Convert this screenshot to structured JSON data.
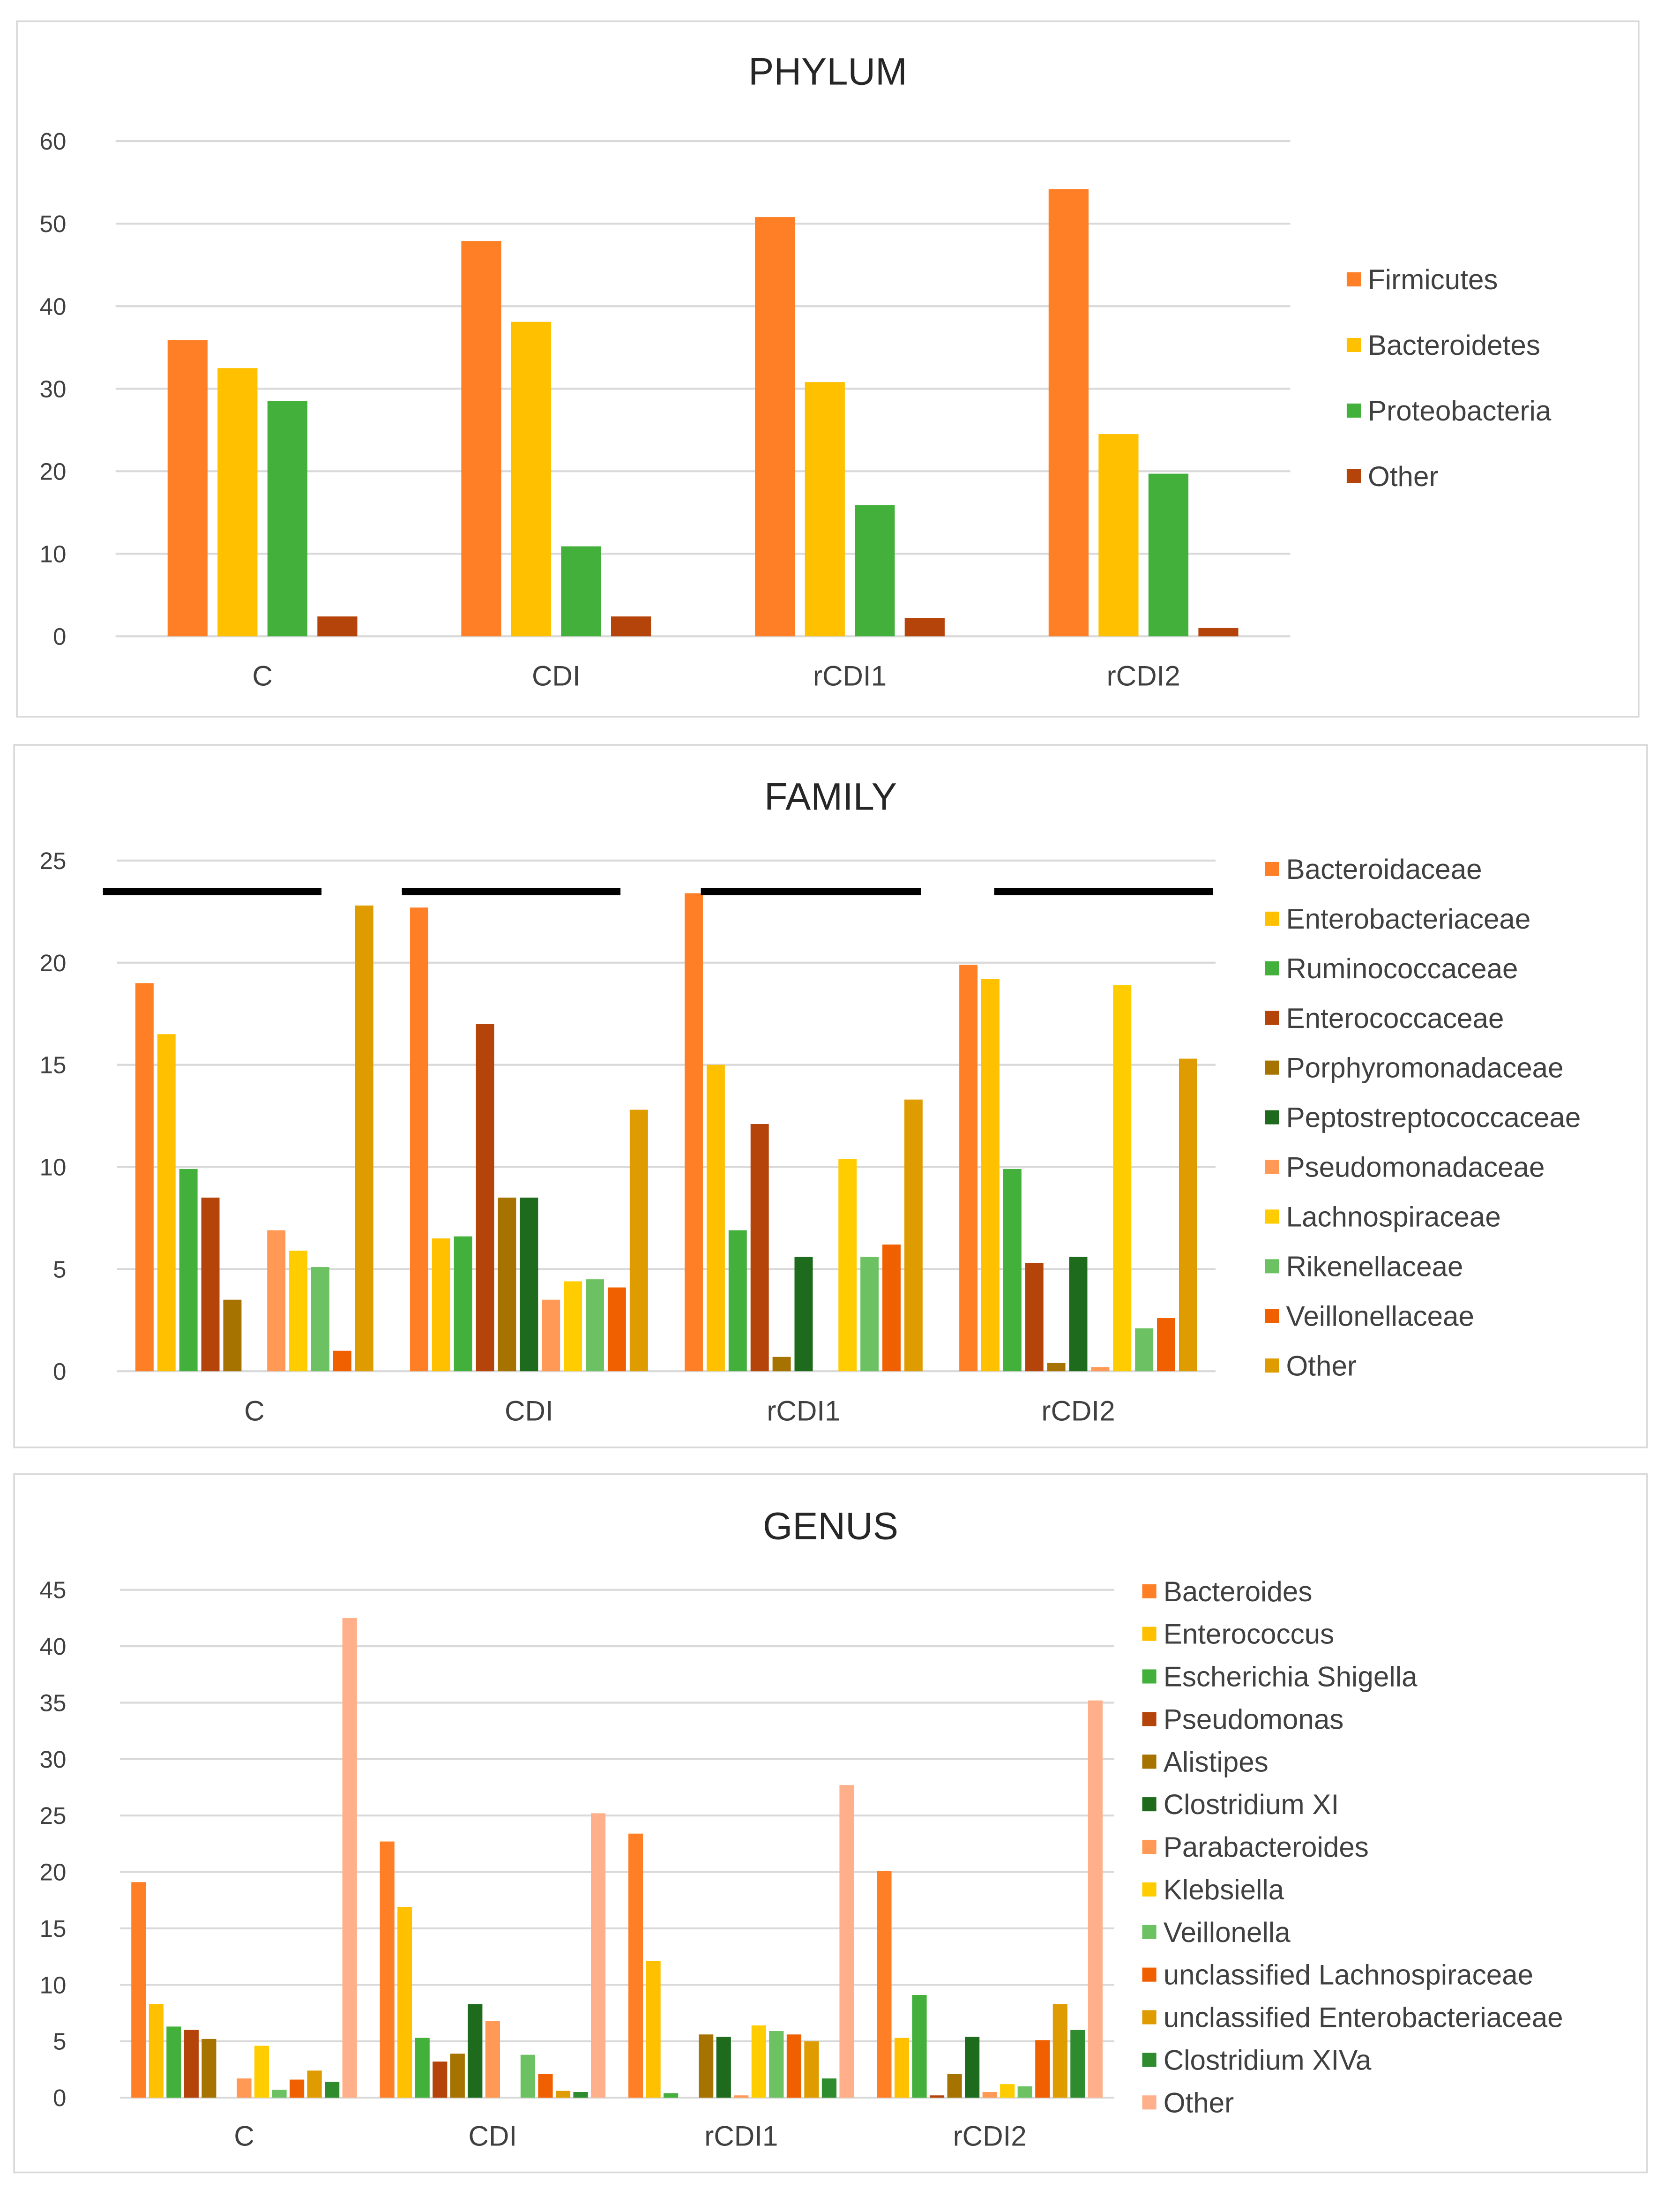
{
  "chart_data": [
    {
      "type": "bar",
      "title": "PHYLUM",
      "xlabel": "",
      "ylabel": "",
      "ylim": [
        0,
        60
      ],
      "yticks": [
        0,
        10,
        20,
        30,
        40,
        50,
        60
      ],
      "grid": true,
      "legend_position": "right",
      "categories": [
        "C",
        "CDI",
        "rCDI1",
        "rCDI2"
      ],
      "series": [
        {
          "name": "Firmicutes",
          "color": "#FF7F27",
          "values": [
            35.9,
            47.9,
            50.8,
            54.2
          ]
        },
        {
          "name": "Bacteroidetes",
          "color": "#FFC000",
          "values": [
            32.5,
            38.1,
            30.8,
            24.5
          ]
        },
        {
          "name": "Proteobacteria",
          "color": "#43B03C",
          "values": [
            28.5,
            10.9,
            15.9,
            19.7
          ]
        },
        {
          "name": "Other",
          "color": "#B5440A",
          "values": [
            2.4,
            2.4,
            2.2,
            1.0
          ]
        }
      ]
    },
    {
      "type": "bar",
      "title": "FAMILY",
      "xlabel": "",
      "ylabel": "",
      "ylim": [
        0,
        25
      ],
      "yticks": [
        0,
        5,
        10,
        15,
        20,
        25
      ],
      "grid": true,
      "legend_position": "right",
      "significance_bars": true,
      "categories": [
        "C",
        "CDI",
        "rCDI1",
        "rCDI2"
      ],
      "series": [
        {
          "name": "Bacteroidaceae",
          "color": "#FF7F27",
          "values": [
            19.0,
            22.7,
            23.4,
            19.9
          ]
        },
        {
          "name": "Enterobacteriaceae",
          "color": "#FFC000",
          "values": [
            16.5,
            6.5,
            15.0,
            19.2
          ]
        },
        {
          "name": "Ruminococcaceae",
          "color": "#43B03C",
          "values": [
            9.9,
            6.6,
            6.9,
            9.9
          ]
        },
        {
          "name": "Enterococcaceae",
          "color": "#B5440A",
          "values": [
            8.5,
            17.0,
            12.1,
            5.3
          ]
        },
        {
          "name": "Porphyromonadaceae",
          "color": "#A67200",
          "values": [
            3.5,
            8.5,
            0.7,
            0.4
          ]
        },
        {
          "name": "Peptostreptococcaceae",
          "color": "#1E6B1E",
          "values": [
            0,
            8.5,
            5.6,
            5.6
          ]
        },
        {
          "name": "Pseudomonadaceae",
          "color": "#FF9955",
          "values": [
            6.9,
            3.5,
            0,
            0.2
          ]
        },
        {
          "name": "Lachnospiraceae",
          "color": "#FFCC00",
          "values": [
            5.9,
            4.4,
            10.4,
            18.9
          ]
        },
        {
          "name": "Rikenellaceae",
          "color": "#6CC262",
          "values": [
            5.1,
            4.5,
            5.6,
            2.1
          ]
        },
        {
          "name": "Veillonellaceae",
          "color": "#F06000",
          "values": [
            1.0,
            4.1,
            6.2,
            2.6
          ]
        },
        {
          "name": "Other",
          "color": "#DE9C00",
          "values": [
            22.8,
            12.8,
            13.3,
            15.3
          ]
        }
      ]
    },
    {
      "type": "bar",
      "title": "GENUS",
      "xlabel": "",
      "ylabel": "",
      "ylim": [
        0,
        45
      ],
      "yticks": [
        0,
        5,
        10,
        15,
        20,
        25,
        30,
        35,
        40,
        45
      ],
      "grid": true,
      "legend_position": "right",
      "categories": [
        "C",
        "CDI",
        "rCDI1",
        "rCDI2"
      ],
      "series": [
        {
          "name": "Bacteroides",
          "color": "#FF7F27",
          "values": [
            19.1,
            22.7,
            23.4,
            20.1
          ]
        },
        {
          "name": "Enterococcus",
          "color": "#FFC000",
          "values": [
            8.3,
            16.9,
            12.1,
            5.3
          ]
        },
        {
          "name": "Escherichia Shigella",
          "color": "#43B03C",
          "values": [
            6.3,
            5.3,
            0.4,
            9.1
          ]
        },
        {
          "name": "Pseudomonas",
          "color": "#B5440A",
          "values": [
            6.0,
            3.2,
            0,
            0.2
          ]
        },
        {
          "name": "Alistipes",
          "color": "#A67200",
          "values": [
            5.2,
            3.9,
            5.6,
            2.1
          ]
        },
        {
          "name": "Clostridium XI",
          "color": "#1E6B1E",
          "values": [
            0,
            8.3,
            5.4,
            5.4
          ]
        },
        {
          "name": "Parabacteroides",
          "color": "#FF9955",
          "values": [
            1.7,
            6.8,
            0.2,
            0.5
          ]
        },
        {
          "name": "Klebsiella",
          "color": "#FFCC00",
          "values": [
            4.6,
            0,
            6.4,
            1.2
          ]
        },
        {
          "name": "Veillonella",
          "color": "#6CC262",
          "values": [
            0.7,
            3.8,
            5.9,
            1.0
          ]
        },
        {
          "name": "unclassified Lachnospiraceae",
          "color": "#F06000",
          "values": [
            1.6,
            2.1,
            5.6,
            5.1
          ]
        },
        {
          "name": "unclassified Enterobacteriaceae",
          "color": "#DE9C00",
          "values": [
            2.4,
            0.6,
            5.0,
            8.3
          ]
        },
        {
          "name": "Clostridium XIVa",
          "color": "#2E8B2E",
          "values": [
            1.4,
            0.5,
            1.7,
            6.0
          ]
        },
        {
          "name": "Other",
          "color": "#FFB08A",
          "values": [
            42.5,
            25.2,
            27.7,
            35.2
          ]
        }
      ]
    }
  ]
}
